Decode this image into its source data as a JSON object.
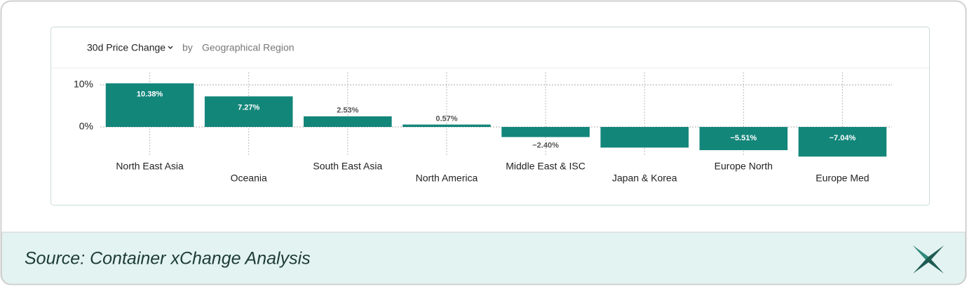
{
  "chart_data": {
    "type": "bar",
    "title": "30d Price Change",
    "connector": "by",
    "subtitle": "Geographical Region",
    "categories": [
      "North East Asia",
      "Oceania",
      "South East Asia",
      "North America",
      "Middle East & ISC",
      "Japan & Korea",
      "Europe North",
      "Europe Med"
    ],
    "values": [
      10.38,
      7.27,
      2.53,
      0.57,
      -2.4,
      -4.9,
      -5.51,
      -7.04
    ],
    "value_labels": [
      "10.38%",
      "7.27%",
      "2.53%",
      "0.57%",
      "−2.40%",
      null,
      "−5.51%",
      "−7.04%"
    ],
    "color": "#13867a",
    "ylim": [
      -7.5,
      13
    ],
    "yticks": [
      {
        "value": 0,
        "label": "0%"
      },
      {
        "value": 10,
        "label": "10%"
      }
    ],
    "grid": true
  },
  "footer": {
    "source": "Source: Container xChange Analysis"
  }
}
